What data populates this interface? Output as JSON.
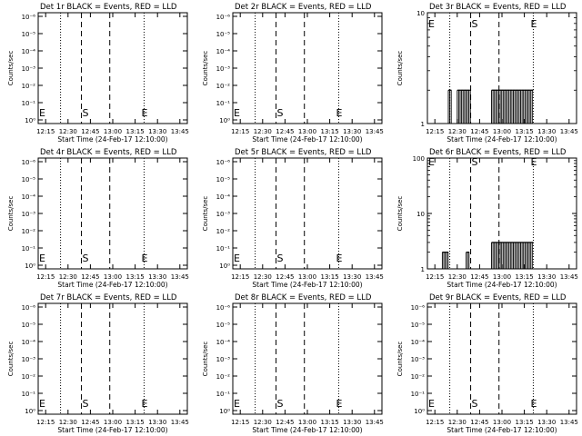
{
  "figure": {
    "xlabel": "Start Time (24-Feb-17 12:10:00)",
    "ylabel": "Counts/sec",
    "xticks": [
      "12:15",
      "12:30",
      "12:45",
      "13:00",
      "13:15",
      "13:30",
      "13:45"
    ],
    "marker_s": "S",
    "marker_e": "E"
  },
  "chart_data": [
    {
      "type": "line",
      "title": "Det 1r BLACK = Events, RED = LLD",
      "yscale": "log",
      "yticks": [
        "10⁰",
        "10⁻¹",
        "10⁻²",
        "10⁻³",
        "10⁻⁴",
        "10⁻⁵",
        "10⁻⁶"
      ],
      "xlim": [
        "12:10",
        "13:50"
      ],
      "dotted_lines": [
        "12:25",
        "13:21"
      ],
      "dashed_lines": [
        "12:39",
        "12:58"
      ],
      "series": []
    },
    {
      "type": "line",
      "title": "Det 2r BLACK = Events, RED = LLD",
      "yscale": "log",
      "yticks": [
        "10⁰",
        "10⁻¹",
        "10⁻²",
        "10⁻³",
        "10⁻⁴",
        "10⁻⁵",
        "10⁻⁶"
      ],
      "xlim": [
        "12:10",
        "13:50"
      ],
      "dotted_lines": [
        "12:25",
        "13:21"
      ],
      "dashed_lines": [
        "12:39",
        "12:58"
      ],
      "series": []
    },
    {
      "type": "line",
      "title": "Det 3r BLACK = Events, RED = LLD",
      "yscale": "log",
      "yticks": [
        "1",
        "10"
      ],
      "xlim": [
        "12:10",
        "13:50"
      ],
      "dotted_lines": [
        "12:25",
        "13:21"
      ],
      "dashed_lines": [
        "12:39",
        "12:58"
      ],
      "series": [
        {
          "segments": [
            [
              "12:24",
              "12:26",
              2
            ],
            [
              "12:30",
              "12:39",
              2
            ],
            [
              "12:53",
              "13:21",
              2
            ]
          ]
        }
      ]
    },
    {
      "type": "line",
      "title": "Det 4r BLACK = Events, RED = LLD",
      "yscale": "log",
      "yticks": [
        "10⁰",
        "10⁻¹",
        "10⁻²",
        "10⁻³",
        "10⁻⁴",
        "10⁻⁵",
        "10⁻⁶"
      ],
      "xlim": [
        "12:10",
        "13:50"
      ],
      "dotted_lines": [
        "12:25",
        "13:21"
      ],
      "dashed_lines": [
        "12:39",
        "12:58"
      ],
      "series": []
    },
    {
      "type": "line",
      "title": "Det 5r BLACK = Events, RED = LLD",
      "yscale": "log",
      "yticks": [
        "10⁰",
        "10⁻¹",
        "10⁻²",
        "10⁻³",
        "10⁻⁴",
        "10⁻⁵",
        "10⁻⁶"
      ],
      "xlim": [
        "12:10",
        "13:50"
      ],
      "dotted_lines": [
        "12:25",
        "13:21"
      ],
      "dashed_lines": [
        "12:39",
        "12:58"
      ],
      "series": []
    },
    {
      "type": "line",
      "title": "Det 6r BLACK = Events, RED = LLD",
      "yscale": "log",
      "yticks": [
        "1",
        "10",
        "100"
      ],
      "xlim": [
        "12:10",
        "13:50"
      ],
      "dotted_lines": [
        "12:25",
        "13:21"
      ],
      "dashed_lines": [
        "12:39",
        "12:58"
      ],
      "series": [
        {
          "segments": [
            [
              "12:20",
              "12:24",
              2
            ],
            [
              "12:36",
              "12:38",
              2
            ],
            [
              "12:53",
              "13:21",
              3
            ]
          ]
        }
      ]
    },
    {
      "type": "line",
      "title": "Det 7r BLACK = Events, RED = LLD",
      "yscale": "log",
      "yticks": [
        "10⁰",
        "10⁻¹",
        "10⁻²",
        "10⁻³",
        "10⁻⁴",
        "10⁻⁵",
        "10⁻⁶"
      ],
      "xlim": [
        "12:10",
        "13:50"
      ],
      "dotted_lines": [
        "12:25",
        "13:21"
      ],
      "dashed_lines": [
        "12:39",
        "12:58"
      ],
      "series": []
    },
    {
      "type": "line",
      "title": "Det 8r BLACK = Events, RED = LLD",
      "yscale": "log",
      "yticks": [
        "10⁰",
        "10⁻¹",
        "10⁻²",
        "10⁻³",
        "10⁻⁴",
        "10⁻⁵",
        "10⁻⁶"
      ],
      "xlim": [
        "12:10",
        "13:50"
      ],
      "dotted_lines": [
        "12:25",
        "13:21"
      ],
      "dashed_lines": [
        "12:39",
        "12:58"
      ],
      "series": []
    },
    {
      "type": "line",
      "title": "Det 9r BLACK = Events, RED = LLD",
      "yscale": "log",
      "yticks": [
        "10⁰",
        "10⁻¹",
        "10⁻²",
        "10⁻³",
        "10⁻⁴",
        "10⁻⁵",
        "10⁻⁶"
      ],
      "xlim": [
        "12:10",
        "13:50"
      ],
      "dotted_lines": [
        "12:25",
        "13:21"
      ],
      "dashed_lines": [
        "12:39",
        "12:58"
      ],
      "series": []
    }
  ]
}
